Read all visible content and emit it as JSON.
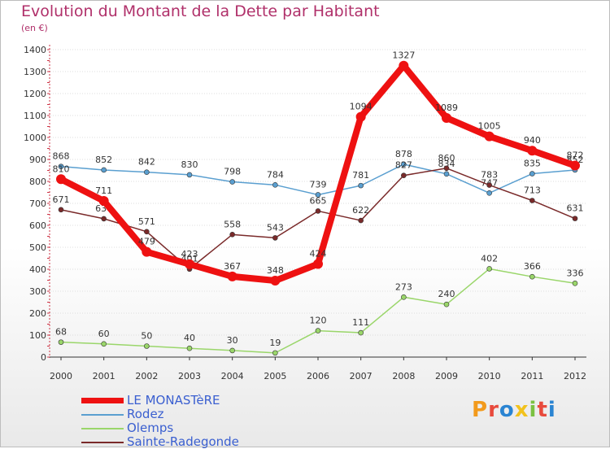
{
  "header": {
    "title": "Evolution du Montant de la Dette par Habitant",
    "unit": "(en €)"
  },
  "logo": {
    "text": "Proxiti",
    "letters": [
      {
        "ch": "P",
        "color": "#f29a1c"
      },
      {
        "ch": "r",
        "color": "#e84a3c"
      },
      {
        "ch": "o",
        "color": "#2a84d2"
      },
      {
        "ch": "x",
        "color": "#f2c21c"
      },
      {
        "ch": "i",
        "color": "#7bc142"
      },
      {
        "ch": "t",
        "color": "#e84a3c"
      },
      {
        "ch": "i",
        "color": "#2a84d2"
      }
    ]
  },
  "chart_data": {
    "type": "line",
    "x": [
      "2000",
      "2001",
      "2002",
      "2003",
      "2004",
      "2005",
      "2006",
      "2007",
      "2008",
      "2009",
      "2010",
      "2011",
      "2012"
    ],
    "ylim": [
      0,
      1400
    ],
    "yticks": [
      0,
      100,
      200,
      300,
      400,
      500,
      600,
      700,
      800,
      900,
      1000,
      1100,
      1200,
      1300,
      1400
    ],
    "grid": true,
    "legend_position": "bottom-left",
    "series": [
      {
        "name": "Rodez",
        "color": "#5a9fd0",
        "values": [
          868,
          852,
          842,
          830,
          798,
          784,
          739,
          781,
          878,
          834,
          747,
          835,
          852
        ],
        "labels": [
          "868",
          "852",
          "842",
          "830",
          "798",
          "784",
          "739",
          "781",
          "878",
          "834",
          "747",
          "835",
          "852"
        ]
      },
      {
        "name": "Olemps",
        "color": "#9ad66a",
        "values": [
          68,
          60,
          50,
          40,
          30,
          19,
          120,
          111,
          273,
          240,
          402,
          366,
          336
        ],
        "labels": [
          "68",
          "60",
          "50",
          "40",
          "30",
          "19",
          "120",
          "111",
          "273",
          "240",
          "402",
          "366",
          "336"
        ]
      },
      {
        "name": "Sainte-Radegonde",
        "color": "#7a2a2a",
        "values": [
          671,
          630,
          571,
          401,
          558,
          543,
          665,
          622,
          827,
          860,
          783,
          713,
          631
        ],
        "labels": [
          "671",
          "630",
          "571",
          "401",
          "558",
          "543",
          "665",
          "622",
          "827",
          "860",
          "783",
          "713",
          "631"
        ]
      },
      {
        "name": "LE MONASTèRE",
        "color": "#ee1111",
        "values": [
          810,
          711,
          479,
          423,
          367,
          348,
          424,
          1094,
          1327,
          1089,
          1005,
          940,
          872
        ],
        "labels": [
          "810",
          "711",
          "479",
          "423",
          "367",
          "348",
          "424",
          "1094",
          "1327",
          "1089",
          "1005",
          "940",
          "872"
        ]
      }
    ],
    "legend": [
      "LE MONASTèRE",
      "Rodez",
      "Olemps",
      "Sainte-Radegonde"
    ]
  }
}
